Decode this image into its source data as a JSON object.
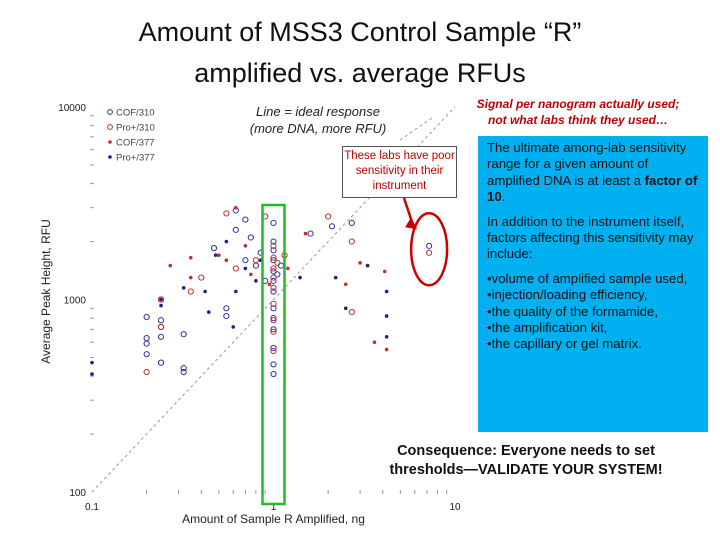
{
  "slide": {
    "title_line1": "Amount of MSS3 Control Sample “R”",
    "title_line2": "amplified vs. average RFUs",
    "note_ideal_line1": "Line = ideal response",
    "note_ideal_line2": "(more DNA, more RFU)",
    "note_signal_line1": "Signal per nanogram actually used;",
    "note_signal_line2": "not what labs think they used…",
    "note_poor": "These labs have poor sensitivity in their instrument",
    "range_text_pre": "The ultimate among-lab sensitivity range for a given amount of amplified DNA is at least a ",
    "range_text_bold": "factor of 10",
    "range_text_post": ".",
    "factors_intro": "In addition to the instrument itself, factors affecting this sensitivity may include:",
    "factors": [
      "•volume of amplified sample used,",
      "•injection/loading efficiency,",
      "•the quality of the formamide,",
      "•the amplification kit,",
      "•the capillary or gel matrix."
    ],
    "consequence_line1": "Consequence: Everyone needs to set",
    "consequence_line2": "thresholds—VALIDATE YOUR SYSTEM!"
  },
  "chart_data": {
    "type": "scatter",
    "xscale": "log",
    "yscale": "log",
    "xlim": [
      0.1,
      10
    ],
    "ylim": [
      100,
      10000
    ],
    "xlabel": "Amount of Sample R Amplified, ng",
    "ylabel": "Average Peak Height, RFU",
    "x_ticks": [
      "0.1",
      "1",
      "10"
    ],
    "y_ticks": [
      "100",
      "1000",
      "10000"
    ],
    "legend_position": "top-left",
    "ideal_line": [
      [
        0.1,
        100
      ],
      [
        10,
        10000
      ]
    ],
    "highlight_x": 1.0,
    "colors": {
      "cof310": "#3030a0",
      "pro310": "#c03030",
      "cof377": "#c03030",
      "pro377": "#202080",
      "box": "#22bb22",
      "poor": "#cc0000"
    },
    "series": [
      {
        "name": "COF/310",
        "marker": "open-circle",
        "color": "#3030a0",
        "points": [
          [
            0.2,
            810
          ],
          [
            0.2,
            630
          ],
          [
            0.2,
            590
          ],
          [
            0.2,
            520
          ],
          [
            0.24,
            1000
          ],
          [
            0.24,
            780
          ],
          [
            0.24,
            720
          ],
          [
            0.24,
            640
          ],
          [
            0.24,
            470
          ],
          [
            0.32,
            660
          ],
          [
            0.32,
            440
          ],
          [
            0.32,
            420
          ],
          [
            0.47,
            1850
          ],
          [
            0.55,
            900
          ],
          [
            0.55,
            820
          ],
          [
            0.62,
            2900
          ],
          [
            0.62,
            2300
          ],
          [
            0.7,
            2600
          ],
          [
            0.7,
            1600
          ],
          [
            0.75,
            2100
          ],
          [
            0.8,
            1500
          ],
          [
            0.85,
            1750
          ],
          [
            0.9,
            1250
          ],
          [
            1.0,
            2500
          ],
          [
            1.0,
            2000
          ],
          [
            1.0,
            1800
          ],
          [
            1.0,
            1600
          ],
          [
            1.0,
            1400
          ],
          [
            1.0,
            1250
          ],
          [
            1.0,
            1100
          ],
          [
            1.0,
            900
          ],
          [
            1.0,
            800
          ],
          [
            1.0,
            700
          ],
          [
            1.0,
            560
          ],
          [
            1.0,
            460
          ],
          [
            1.0,
            410
          ],
          [
            1.05,
            1350
          ],
          [
            1.1,
            1500
          ],
          [
            1.6,
            2200
          ],
          [
            2.1,
            2400
          ],
          [
            2.7,
            2500
          ],
          [
            7.2,
            1900
          ]
        ]
      },
      {
        "name": "Pro+/310",
        "marker": "open-circle",
        "color": "#c03030",
        "points": [
          [
            0.2,
            420
          ],
          [
            0.24,
            1000
          ],
          [
            0.24,
            720
          ],
          [
            0.35,
            1100
          ],
          [
            0.4,
            1300
          ],
          [
            0.55,
            2800
          ],
          [
            0.62,
            1450
          ],
          [
            0.8,
            1600
          ],
          [
            0.9,
            2700
          ],
          [
            1.0,
            1900
          ],
          [
            1.0,
            1650
          ],
          [
            1.0,
            1450
          ],
          [
            1.0,
            1300
          ],
          [
            1.0,
            1150
          ],
          [
            1.0,
            950
          ],
          [
            1.0,
            780
          ],
          [
            1.0,
            680
          ],
          [
            1.0,
            540
          ],
          [
            1.05,
            1550
          ],
          [
            1.15,
            1700
          ],
          [
            2.0,
            2700
          ],
          [
            2.7,
            860
          ],
          [
            2.7,
            2000
          ],
          [
            7.2,
            1750
          ]
        ]
      },
      {
        "name": "COF/377",
        "marker": "dot",
        "color": "#c03030",
        "points": [
          [
            0.27,
            1500
          ],
          [
            0.35,
            1650
          ],
          [
            0.35,
            1300
          ],
          [
            0.5,
            1700
          ],
          [
            0.55,
            1600
          ],
          [
            0.62,
            3000
          ],
          [
            0.7,
            1900
          ],
          [
            0.75,
            1350
          ],
          [
            0.95,
            1200
          ],
          [
            1.2,
            1450
          ],
          [
            1.5,
            2200
          ],
          [
            2.5,
            1200
          ],
          [
            3.0,
            1550
          ],
          [
            3.6,
            600
          ],
          [
            4.1,
            1400
          ],
          [
            4.2,
            550
          ]
        ]
      },
      {
        "name": "Pro+/377",
        "marker": "dot",
        "color": "#202080",
        "points": [
          [
            0.1,
            470
          ],
          [
            0.1,
            410
          ],
          [
            0.24,
            1000
          ],
          [
            0.24,
            930
          ],
          [
            0.32,
            1150
          ],
          [
            0.42,
            1100
          ],
          [
            0.44,
            860
          ],
          [
            0.48,
            1700
          ],
          [
            0.55,
            2000
          ],
          [
            0.6,
            720
          ],
          [
            0.62,
            1100
          ],
          [
            0.7,
            1450
          ],
          [
            0.8,
            1250
          ],
          [
            0.85,
            1600
          ],
          [
            1.4,
            1300
          ],
          [
            2.2,
            1300
          ],
          [
            2.5,
            900
          ],
          [
            3.3,
            1500
          ],
          [
            4.2,
            1100
          ],
          [
            4.2,
            820
          ],
          [
            4.2,
            640
          ]
        ]
      }
    ]
  }
}
